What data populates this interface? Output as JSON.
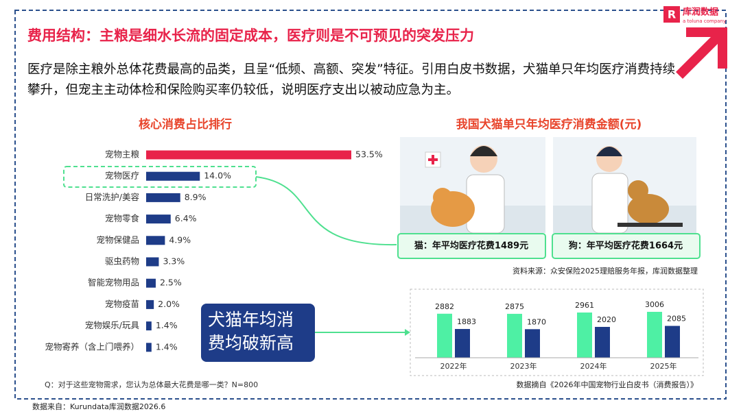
{
  "brand": {
    "name": "库润数据",
    "tagline": "a toluna company"
  },
  "title": "费用结构：主粮是细水长流的固定成本，医疗则是不可预见的突发压力",
  "description": "医疗是除主粮外总体花费最高的品类，且呈“低频、高额、突发”特征。引用白皮书数据，犬猫单只年均医疗消费持续攀升，但宠主主动体检和保险购买率仍较低，说明医疗支出以被动应急为主。",
  "chart_data": [
    {
      "type": "hbar",
      "title": "核心消费占比排行",
      "categories": [
        "宠物主粮",
        "宠物医疗",
        "日常洗护/美容",
        "宠物零食",
        "宠物保健品",
        "驱虫药物",
        "智能宠物用品",
        "宠物疫苗",
        "宠物娱乐/玩具",
        "宠物寄养（含上门喂养）"
      ],
      "values": [
        53.5,
        14.0,
        8.9,
        6.4,
        4.9,
        3.3,
        2.5,
        2.0,
        1.4,
        1.4
      ],
      "value_labels": [
        "53.5%",
        "14.0%",
        "8.9%",
        "6.4%",
        "4.9%",
        "3.3%",
        "2.5%",
        "2.0%",
        "1.4%",
        "1.4%"
      ],
      "colors": [
        "#e8234a",
        "#1e3c88",
        "#1e3c88",
        "#1e3c88",
        "#1e3c88",
        "#1e3c88",
        "#1e3c88",
        "#1e3c88",
        "#1e3c88",
        "#1e3c88"
      ],
      "note": "Q：对于这些宠物需求，您认为总体最大花费是哪一类？N=800"
    },
    {
      "type": "grouped-bar",
      "title": "我国犬猫单只年均医疗消费金额(元)",
      "categories": [
        "2022年",
        "2023年",
        "2024年",
        "2025年"
      ],
      "series": [
        {
          "color": "#4ef0a4",
          "values": [
            2882,
            2875,
            2961,
            3006
          ]
        },
        {
          "color": "#1e3c88",
          "values": [
            1883,
            1870,
            2020,
            2085
          ]
        }
      ],
      "source": "数据摘自《2026年中国宠物行业白皮书（消费报告）》"
    }
  ],
  "cards": [
    "猫：年平均医疗花费1489元",
    "狗：年平均医疗花费1664元"
  ],
  "card_source": "资料来源：众安保险2025理赔服务年报，库润数据整理",
  "callout": "犬猫年均消费均破新高",
  "footer": "数据来自：Kurundata库润数据2026.6"
}
